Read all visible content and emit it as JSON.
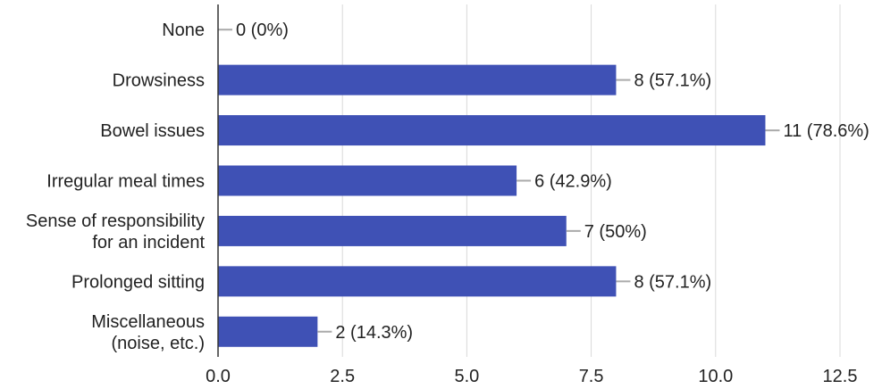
{
  "chart_data": {
    "type": "bar",
    "orientation": "horizontal",
    "categories": [
      [
        "None"
      ],
      [
        "Drowsiness"
      ],
      [
        "Bowel issues"
      ],
      [
        "Irregular meal times"
      ],
      [
        "Sense of responsibility",
        "for an incident"
      ],
      [
        "Prolonged sitting"
      ],
      [
        "Miscellaneous",
        "(noise, etc.)"
      ]
    ],
    "values": [
      0,
      8,
      11,
      6,
      7,
      8,
      2
    ],
    "data_labels": [
      "0 (0%)",
      "8 (57.1%)",
      "11 (78.6%)",
      "6 (42.9%)",
      "7 (50%)",
      "8 (57.1%)",
      "2 (14.3%)"
    ],
    "xlim": [
      0,
      12.5
    ],
    "xticks": [
      "0.0",
      "2.5",
      "5.0",
      "7.5",
      "10.0",
      "12.5"
    ],
    "grid": "vertical",
    "legend": "none"
  },
  "colors": {
    "bar": "#3f51b5",
    "grid": "#d9d9d9",
    "axis": "#333333",
    "leader": "#aaaaaa"
  }
}
